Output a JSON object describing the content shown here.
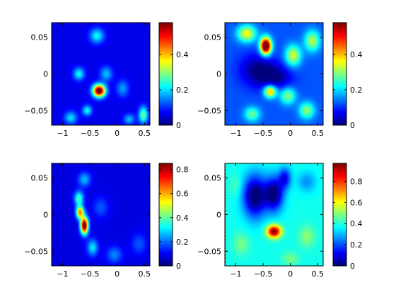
{
  "colormap": {
    "name": "jet",
    "stops": [
      "#00007f",
      "#0000ff",
      "#007fff",
      "#00ffff",
      "#7fff7f",
      "#ffff00",
      "#ff7f00",
      "#ff0000",
      "#7f0000"
    ]
  },
  "chart_data": [
    {
      "type": "heatmap",
      "position": "top-left",
      "xlim": [
        -1.2,
        0.6
      ],
      "ylim": [
        -0.07,
        0.07
      ],
      "xticks": [
        {
          "v": -1,
          "label": "−1"
        },
        {
          "v": -0.5,
          "label": "−0.5"
        },
        {
          "v": 0,
          "label": "0"
        },
        {
          "v": 0.5,
          "label": "0.5"
        }
      ],
      "yticks": [
        {
          "v": 0.05,
          "label": "0.05"
        },
        {
          "v": 0,
          "label": "0"
        },
        {
          "v": -0.05,
          "label": "−0.05"
        }
      ],
      "clim": [
        0,
        0.58
      ],
      "cticks": [
        {
          "v": 0,
          "label": "0"
        },
        {
          "v": 0.2,
          "label": "0.2"
        },
        {
          "v": 0.4,
          "label": "0.4"
        }
      ],
      "background": 0.06,
      "blobs": [
        {
          "x": -0.33,
          "y": -0.023,
          "value": 0.57,
          "sx": 0.08,
          "sy": 0.006
        },
        {
          "x": -0.37,
          "y": 0.052,
          "value": 0.16,
          "sx": 0.09,
          "sy": 0.007
        },
        {
          "x": -0.7,
          "y": 0.0,
          "value": 0.16,
          "sx": 0.07,
          "sy": 0.006
        },
        {
          "x": -0.2,
          "y": 0.0,
          "value": 0.12,
          "sx": 0.08,
          "sy": 0.007
        },
        {
          "x": 0.1,
          "y": -0.02,
          "value": 0.1,
          "sx": 0.08,
          "sy": 0.008
        },
        {
          "x": -0.55,
          "y": -0.05,
          "value": 0.16,
          "sx": 0.06,
          "sy": 0.005
        },
        {
          "x": -0.85,
          "y": -0.06,
          "value": 0.14,
          "sx": 0.08,
          "sy": 0.006
        },
        {
          "x": 0.48,
          "y": -0.056,
          "value": 0.22,
          "sx": 0.06,
          "sy": 0.008
        },
        {
          "x": 0.22,
          "y": -0.062,
          "value": 0.12,
          "sx": 0.07,
          "sy": 0.005
        }
      ]
    },
    {
      "type": "heatmap",
      "position": "top-right",
      "xlim": [
        -1.2,
        0.6
      ],
      "ylim": [
        -0.07,
        0.07
      ],
      "xticks": [
        {
          "v": -1,
          "label": "−1"
        },
        {
          "v": -0.5,
          "label": "−0.5"
        },
        {
          "v": 0,
          "label": "0"
        },
        {
          "v": 0.5,
          "label": "0.5"
        }
      ],
      "yticks": [
        {
          "v": 0.05,
          "label": "0.05"
        },
        {
          "v": 0,
          "label": "0"
        },
        {
          "v": -0.05,
          "label": "−0.05"
        }
      ],
      "clim": [
        0,
        0.58
      ],
      "cticks": [
        {
          "v": 0,
          "label": "0"
        },
        {
          "v": 0.2,
          "label": "0.2"
        },
        {
          "v": 0.4,
          "label": "0.4"
        }
      ],
      "background": 0.12,
      "blobs": [
        {
          "x": -0.45,
          "y": 0.038,
          "value": 0.57,
          "sx": 0.07,
          "sy": 0.008
        },
        {
          "x": -0.37,
          "y": -0.024,
          "value": 0.3,
          "sx": 0.08,
          "sy": 0.006
        },
        {
          "x": -0.8,
          "y": 0.055,
          "value": 0.24,
          "sx": 0.12,
          "sy": 0.008
        },
        {
          "x": 0.05,
          "y": 0.025,
          "value": 0.22,
          "sx": 0.1,
          "sy": 0.01
        },
        {
          "x": 0.4,
          "y": 0.045,
          "value": 0.2,
          "sx": 0.1,
          "sy": 0.01
        },
        {
          "x": -0.05,
          "y": -0.03,
          "value": 0.18,
          "sx": 0.1,
          "sy": 0.008
        },
        {
          "x": 0.3,
          "y": -0.05,
          "value": 0.18,
          "sx": 0.1,
          "sy": 0.008
        },
        {
          "x": -0.7,
          "y": -0.055,
          "value": 0.16,
          "sx": 0.1,
          "sy": 0.007
        },
        {
          "x": -0.6,
          "y": 0.005,
          "value": -0.12,
          "sx": 0.22,
          "sy": 0.015
        },
        {
          "x": -0.25,
          "y": -0.005,
          "value": -0.1,
          "sx": 0.2,
          "sy": 0.012
        }
      ]
    },
    {
      "type": "heatmap",
      "position": "bottom-left",
      "xlim": [
        -1.2,
        0.6
      ],
      "ylim": [
        -0.07,
        0.07
      ],
      "xticks": [
        {
          "v": -1,
          "label": "−1"
        },
        {
          "v": -0.5,
          "label": "−0.5"
        },
        {
          "v": 0,
          "label": "0"
        },
        {
          "v": 0.5,
          "label": "0.5"
        }
      ],
      "yticks": [
        {
          "v": 0.05,
          "label": "0.05"
        },
        {
          "v": 0,
          "label": "0"
        },
        {
          "v": -0.05,
          "label": "−0.05"
        }
      ],
      "clim": [
        0,
        0.85
      ],
      "cticks": [
        {
          "v": 0,
          "label": "0"
        },
        {
          "v": 0.2,
          "label": "0.2"
        },
        {
          "v": 0.4,
          "label": "0.4"
        },
        {
          "v": 0.6,
          "label": "0.6"
        },
        {
          "v": 0.8,
          "label": "0.8"
        }
      ],
      "background": 0.08,
      "blobs": [
        {
          "x": -0.6,
          "y": -0.015,
          "value": 0.83,
          "sx": 0.05,
          "sy": 0.008
        },
        {
          "x": -0.68,
          "y": 0.003,
          "value": 0.55,
          "sx": 0.05,
          "sy": 0.006
        },
        {
          "x": -0.7,
          "y": 0.022,
          "value": 0.3,
          "sx": 0.06,
          "sy": 0.007
        },
        {
          "x": -0.6,
          "y": 0.048,
          "value": 0.18,
          "sx": 0.08,
          "sy": 0.007
        },
        {
          "x": -0.45,
          "y": -0.045,
          "value": 0.22,
          "sx": 0.07,
          "sy": 0.008
        },
        {
          "x": -0.05,
          "y": -0.055,
          "value": 0.14,
          "sx": 0.1,
          "sy": 0.008
        },
        {
          "x": 0.4,
          "y": -0.04,
          "value": 0.1,
          "sx": 0.1,
          "sy": 0.01
        },
        {
          "x": -0.3,
          "y": 0.01,
          "value": 0.1,
          "sx": 0.1,
          "sy": 0.01
        }
      ]
    },
    {
      "type": "heatmap",
      "position": "bottom-right",
      "xlim": [
        -1.2,
        0.6
      ],
      "ylim": [
        -0.07,
        0.07
      ],
      "xticks": [
        {
          "v": -1,
          "label": "−1"
        },
        {
          "v": -0.5,
          "label": "−0.5"
        },
        {
          "v": 0,
          "label": "0"
        },
        {
          "v": 0.5,
          "label": "0.5"
        }
      ],
      "yticks": [
        {
          "v": 0.05,
          "label": "0.05"
        },
        {
          "v": 0,
          "label": "0"
        },
        {
          "v": -0.05,
          "label": "−0.05"
        }
      ],
      "clim": [
        0,
        0.97
      ],
      "cticks": [
        {
          "v": 0,
          "label": "0"
        },
        {
          "v": 0.2,
          "label": "0.2"
        },
        {
          "v": 0.4,
          "label": "0.4"
        },
        {
          "v": 0.6,
          "label": "0.6"
        },
        {
          "v": 0.8,
          "label": "0.8"
        }
      ],
      "background": 0.38,
      "blobs": [
        {
          "x": -0.3,
          "y": -0.023,
          "value": 0.6,
          "sx": 0.09,
          "sy": 0.006
        },
        {
          "x": -0.65,
          "y": 0.025,
          "value": -0.42,
          "sx": 0.15,
          "sy": 0.02
        },
        {
          "x": -0.3,
          "y": 0.028,
          "value": -0.4,
          "sx": 0.12,
          "sy": 0.016
        },
        {
          "x": -0.1,
          "y": 0.05,
          "value": -0.25,
          "sx": 0.08,
          "sy": 0.01
        },
        {
          "x": 0.3,
          "y": 0.045,
          "value": -0.12,
          "sx": 0.12,
          "sy": 0.01
        },
        {
          "x": -0.9,
          "y": -0.04,
          "value": 0.1,
          "sx": 0.1,
          "sy": 0.01
        },
        {
          "x": 0.3,
          "y": -0.03,
          "value": 0.12,
          "sx": 0.1,
          "sy": 0.01
        },
        {
          "x": -1.0,
          "y": 0.04,
          "value": 0.06,
          "sx": 0.08,
          "sy": 0.01
        },
        {
          "x": 0.0,
          "y": -0.06,
          "value": 0.1,
          "sx": 0.1,
          "sy": 0.006
        }
      ]
    }
  ]
}
